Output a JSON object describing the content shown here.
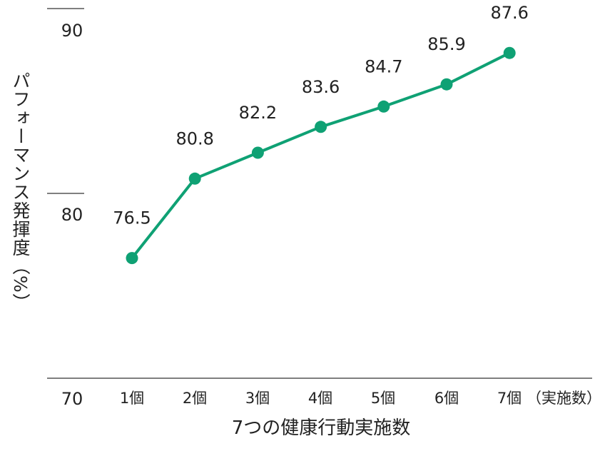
{
  "chart_data": {
    "type": "line",
    "categories": [
      "1個",
      "2個",
      "3個",
      "4個",
      "5個",
      "6個",
      "7個"
    ],
    "x_unit_note": "（実施数）",
    "series": [
      {
        "values": [
          76.5,
          80.8,
          82.2,
          83.6,
          84.7,
          85.9,
          87.6
        ],
        "color": "#0fa174"
      }
    ],
    "data_labels": [
      "76.5",
      "80.8",
      "82.2",
      "83.6",
      "84.7",
      "85.9",
      "87.6"
    ],
    "y_ticks": [
      {
        "value": 90,
        "label": "90"
      },
      {
        "value": 80,
        "label": "80"
      },
      {
        "value": 70,
        "label": "70"
      }
    ],
    "xlabel": "7つの健康行動実施数",
    "ylabel": "パフォーマンス発揮度（%）",
    "ylim": [
      70,
      91
    ],
    "grid": false
  }
}
